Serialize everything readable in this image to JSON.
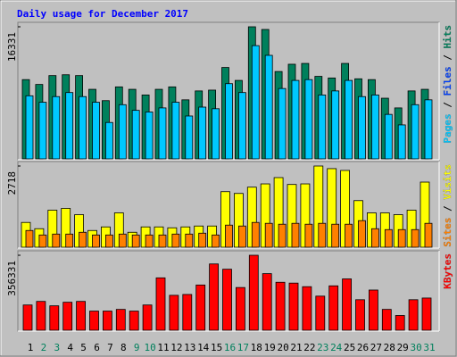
{
  "chart_data": [
    {
      "type": "bar",
      "title": "Daily usage for December 2017",
      "ylim": [
        0,
        16331
      ],
      "yticks": [
        16331
      ],
      "legend_separator": " / ",
      "series": [
        {
          "name": "Hits",
          "color": "#00805c",
          "values": [
            9800,
            9200,
            10300,
            10400,
            10300,
            8600,
            7200,
            8900,
            8600,
            7900,
            8600,
            8900,
            7300,
            8400,
            8500,
            11300,
            9700,
            16331,
            16000,
            10800,
            11700,
            11800,
            10200,
            10000,
            11800,
            9900,
            9800,
            7500,
            6300,
            8400,
            8600
          ]
        },
        {
          "name": "Files",
          "color": "#0040ff",
          "values": [
            null,
            null,
            null,
            null,
            null,
            null,
            null,
            null,
            null,
            null,
            null,
            null,
            null,
            null,
            null,
            null,
            null,
            null,
            null,
            null,
            null,
            null,
            null,
            null,
            null,
            null,
            null,
            null,
            null,
            null,
            null
          ]
        },
        {
          "name": "Pages",
          "color": "#00c8ff",
          "values": [
            7800,
            7000,
            7700,
            8200,
            7700,
            7000,
            4500,
            6700,
            6000,
            5800,
            6300,
            7000,
            5300,
            6400,
            6200,
            9300,
            8200,
            14000,
            12800,
            8700,
            9700,
            9800,
            7900,
            8400,
            9700,
            7700,
            7900,
            5500,
            4200,
            6700,
            7300
          ]
        }
      ]
    },
    {
      "type": "bar",
      "ylim": [
        0,
        2718
      ],
      "yticks": [
        2718
      ],
      "legend_separator": " / ",
      "series": [
        {
          "name": "Visits",
          "color": "#ffff00",
          "values": [
            830,
            620,
            1240,
            1300,
            1090,
            560,
            680,
            1150,
            500,
            680,
            680,
            650,
            680,
            710,
            710,
            1860,
            1800,
            2010,
            2120,
            2330,
            2100,
            2120,
            2718,
            2630,
            2570,
            1560,
            1150,
            1150,
            1090,
            1240,
            2180
          ]
        },
        {
          "name": "Sites",
          "color": "#ff8000",
          "values": [
            560,
            410,
            440,
            440,
            500,
            410,
            410,
            440,
            410,
            410,
            410,
            440,
            440,
            470,
            410,
            740,
            710,
            830,
            800,
            770,
            800,
            770,
            800,
            770,
            770,
            890,
            620,
            590,
            590,
            590,
            800
          ]
        }
      ]
    },
    {
      "type": "bar",
      "ylim": [
        0,
        356331
      ],
      "yticks": [
        356331
      ],
      "categories": [
        "1",
        "2",
        "3",
        "4",
        "5",
        "6",
        "7",
        "8",
        "9",
        "10",
        "11",
        "12",
        "13",
        "14",
        "15",
        "16",
        "17",
        "18",
        "19",
        "20",
        "21",
        "22",
        "23",
        "24",
        "25",
        "26",
        "27",
        "28",
        "29",
        "30",
        "31"
      ],
      "category_colors": [
        "#000000",
        "#00805c",
        "#00805c",
        "#000000",
        "#000000",
        "#000000",
        "#000000",
        "#000000",
        "#00805c",
        "#00805c",
        "#000000",
        "#000000",
        "#000000",
        "#000000",
        "#000000",
        "#00805c",
        "#00805c",
        "#000000",
        "#000000",
        "#000000",
        "#000000",
        "#000000",
        "#00805c",
        "#00805c",
        "#000000",
        "#000000",
        "#000000",
        "#000000",
        "#000000",
        "#00805c",
        "#00805c"
      ],
      "series": [
        {
          "name": "KBytes",
          "color": "#ff0000",
          "values": [
            120000,
            137000,
            116000,
            133000,
            137000,
            91000,
            91000,
            99000,
            91000,
            120000,
            249000,
            166000,
            170000,
            215000,
            315000,
            290000,
            203000,
            356331,
            269000,
            228000,
            224000,
            207000,
            162000,
            211000,
            244000,
            145000,
            191000,
            99000,
            70000,
            145000,
            153000
          ]
        }
      ]
    }
  ]
}
